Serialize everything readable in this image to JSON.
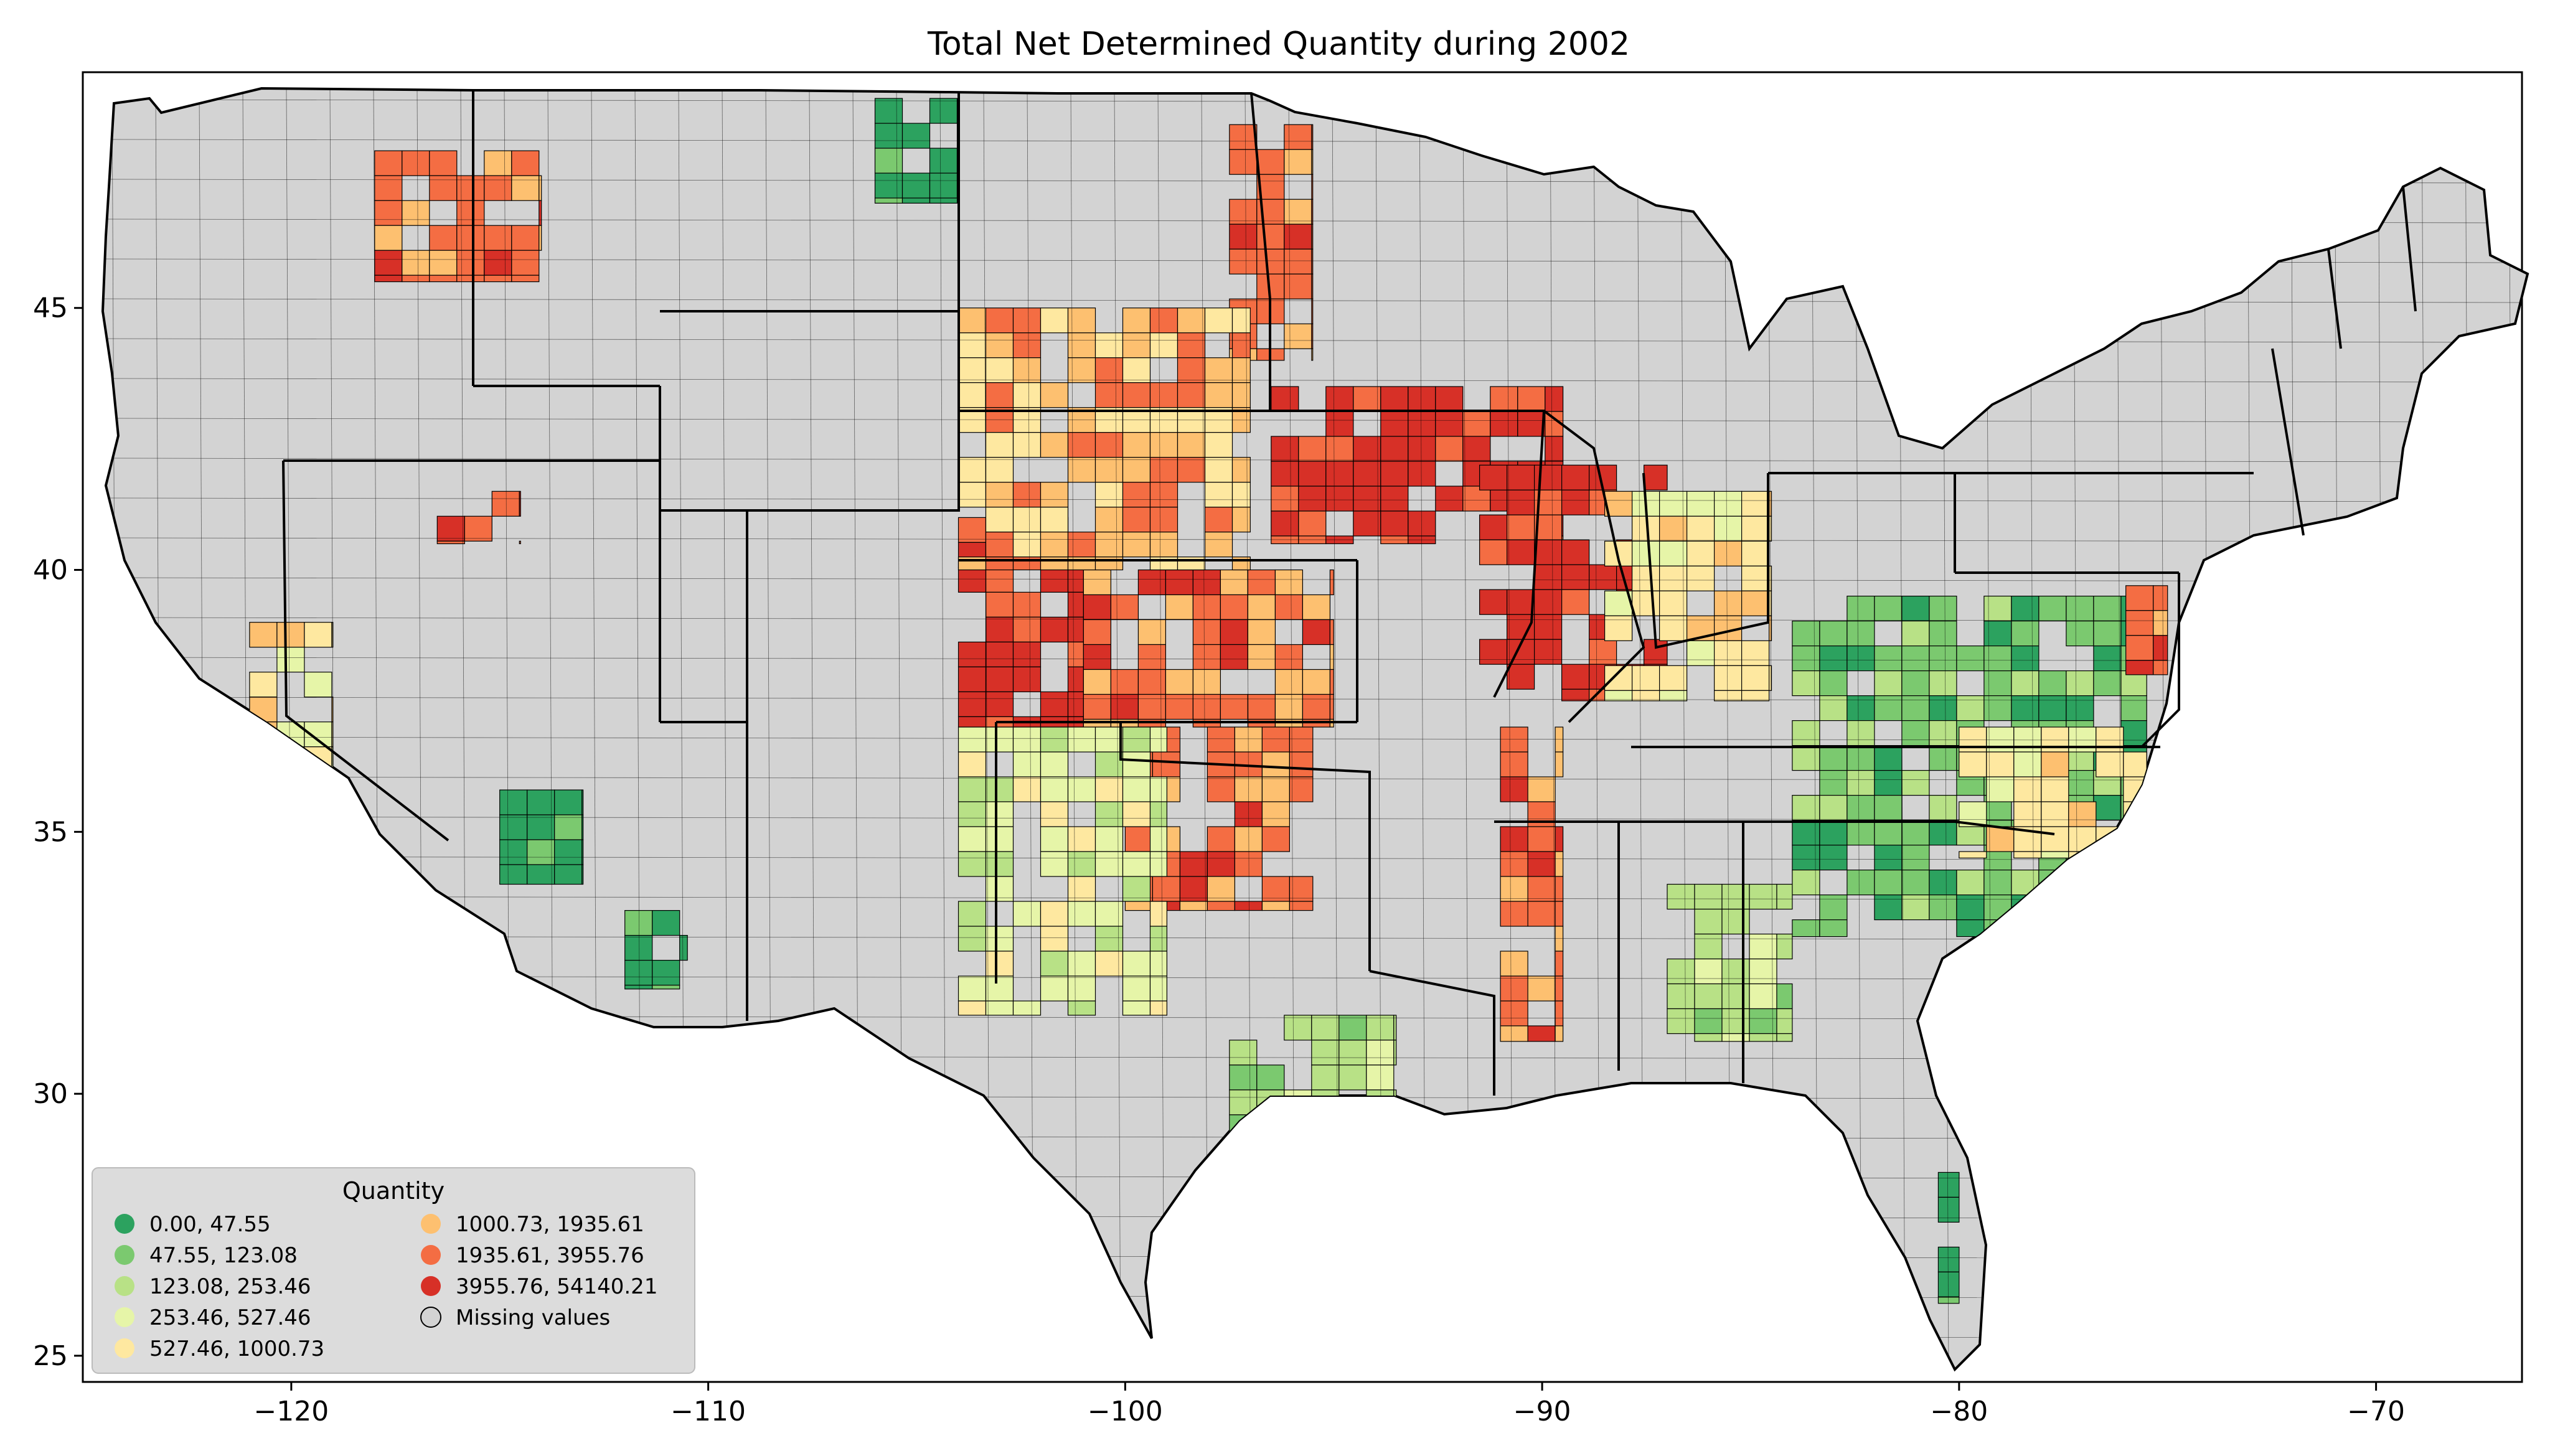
{
  "chart_data": {
    "type": "choropleth",
    "title": "Total Net Determined Quantity during 2002",
    "xlim": [
      -125,
      -66.5
    ],
    "ylim": [
      24.5,
      49.5
    ],
    "x_ticks": [
      -120,
      -110,
      -100,
      -90,
      -80,
      -70
    ],
    "x_tick_labels": [
      "−120",
      "−110",
      "−100",
      "−90",
      "−80",
      "−70"
    ],
    "y_ticks": [
      25,
      30,
      35,
      40,
      45
    ],
    "y_tick_labels": [
      "25",
      "30",
      "35",
      "40",
      "45"
    ],
    "missing_color": "#d3d3d3",
    "legend": {
      "title": "Quantity",
      "placement": "lower-left",
      "entries": [
        {
          "label": "0.00,   47.55",
          "color": "#2ca25f"
        },
        {
          "label": "47.55,   123.08",
          "color": "#7bc96f"
        },
        {
          "label": "123.08,   253.46",
          "color": "#b8e186"
        },
        {
          "label": "253.46,   527.46",
          "color": "#e6f5a8"
        },
        {
          "label": "527.46,  1000.73",
          "color": "#fee8a0"
        },
        {
          "label": "1000.73,  1935.61",
          "color": "#fdc070"
        },
        {
          "label": "1935.61,  3955.76",
          "color": "#f46d43"
        },
        {
          "label": "3955.76, 54140.21",
          "color": "#d73027"
        },
        {
          "label": "Missing values",
          "color": "#d3d3d3"
        }
      ]
    },
    "regions": [
      {
        "lon": [
          -96.5,
          -89.5
        ],
        "lat": [
          40.5,
          43.5
        ],
        "class": 7
      },
      {
        "lon": [
          -97.5,
          -95.5
        ],
        "lat": [
          44,
          48.5
        ],
        "class": 6
      },
      {
        "lon": [
          -104,
          -101
        ],
        "lat": [
          37,
          41
        ],
        "class": 7
      },
      {
        "lon": [
          -101,
          -95
        ],
        "lat": [
          37,
          40
        ],
        "class": 6
      },
      {
        "lon": [
          -100,
          -95.5
        ],
        "lat": [
          33.5,
          37
        ],
        "class": 6
      },
      {
        "lon": [
          -91.5,
          -87
        ],
        "lat": [
          37.5,
          42
        ],
        "class": 7
      },
      {
        "lon": [
          -88.5,
          -84.5
        ],
        "lat": [
          37.5,
          41.5
        ],
        "class": 4
      },
      {
        "lon": [
          -104,
          -97
        ],
        "lat": [
          40,
          45
        ],
        "class": 5
      },
      {
        "lon": [
          -91,
          -89.5
        ],
        "lat": [
          31,
          37
        ],
        "class": 6
      },
      {
        "lon": [
          -104,
          -99
        ],
        "lat": [
          31.5,
          37
        ],
        "class": 3
      },
      {
        "lon": [
          -97.5,
          -93.5
        ],
        "lat": [
          26,
          31.5
        ],
        "class": 2
      },
      {
        "lon": [
          -118,
          -114
        ],
        "lat": [
          45.5,
          48
        ],
        "class": 6
      },
      {
        "lon": [
          -84,
          -75.5
        ],
        "lat": [
          33,
          39.5
        ],
        "class": 1
      },
      {
        "lon": [
          -80,
          -75.5
        ],
        "lat": [
          34.5,
          37
        ],
        "class": 4
      },
      {
        "lon": [
          -80.5,
          -80
        ],
        "lat": [
          26,
          28.5
        ],
        "class": 0
      },
      {
        "lon": [
          -115,
          -113
        ],
        "lat": [
          34,
          35.8
        ],
        "class": 0
      },
      {
        "lon": [
          -112,
          -110.5
        ],
        "lat": [
          32,
          33.5
        ],
        "class": 0
      },
      {
        "lon": [
          -121,
          -119
        ],
        "lat": [
          36,
          39
        ],
        "class": 4
      },
      {
        "lon": [
          -116.5,
          -114.5
        ],
        "lat": [
          40.5,
          41.5
        ],
        "class": 6
      },
      {
        "lon": [
          -87,
          -84
        ],
        "lat": [
          31,
          34
        ],
        "class": 2
      },
      {
        "lon": [
          -76,
          -75
        ],
        "lat": [
          38,
          39.7
        ],
        "class": 6
      },
      {
        "lon": [
          -106,
          -104
        ],
        "lat": [
          47,
          49
        ],
        "class": 0
      }
    ]
  }
}
